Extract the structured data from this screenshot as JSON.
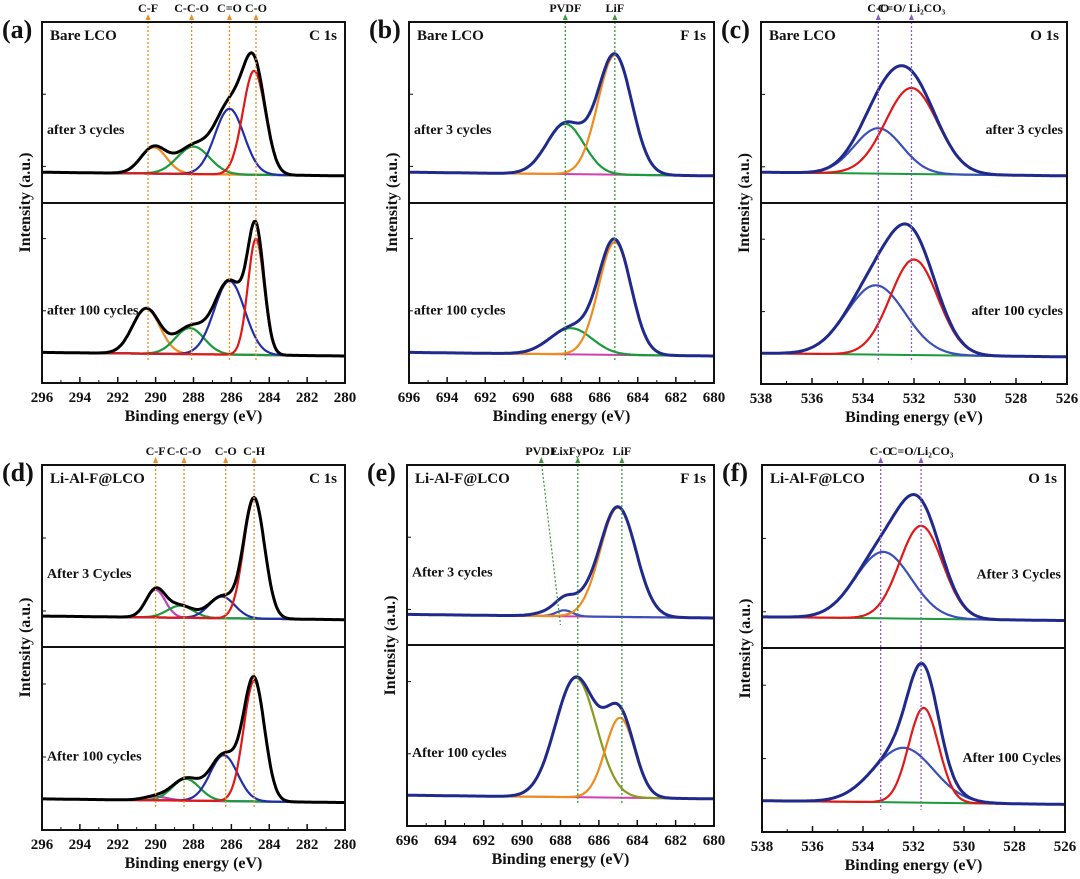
{
  "chart_data": [
    {
      "id": "a",
      "panel_label": "(a)",
      "type": "line",
      "sample": "Bare LCO",
      "region": "C 1s",
      "xlabel": "Binding energy (eV)",
      "ylabel": "Intensity (a.u.)",
      "xlim": [
        296,
        280
      ],
      "xticks": [
        296,
        294,
        292,
        290,
        288,
        286,
        284,
        282,
        280
      ],
      "ref_color": "#f08c1e",
      "ref_lines": [
        {
          "label": "C-F",
          "x": 290.4
        },
        {
          "label": "C-C-O",
          "x": 288.1
        },
        {
          "label": "C=O",
          "x": 286.1
        },
        {
          "label": "C-O",
          "x": 284.7
        }
      ],
      "subplots": [
        {
          "label": "after 3 cycles",
          "label_pos": "left",
          "components": [
            {
              "name": "C-F",
              "color": "#f08c1e",
              "center": 290.1,
              "height": 0.22,
              "fwhm": 1.6
            },
            {
              "name": "C-C-O",
              "color": "#1a9a3a",
              "center": 288.0,
              "height": 0.23,
              "fwhm": 2.0
            },
            {
              "name": "C=O",
              "color": "#2230a8",
              "center": 286.1,
              "height": 0.55,
              "fwhm": 1.8
            },
            {
              "name": "C-O",
              "color": "#e01818",
              "center": 284.8,
              "height": 0.87,
              "fwhm": 1.4
            }
          ],
          "envelope_color": "#000000",
          "baseline_color": "#2230a8"
        },
        {
          "label": "after 100 cycles",
          "label_pos": "left",
          "components": [
            {
              "name": "C-F",
              "color": "#f08c1e",
              "center": 290.5,
              "height": 0.38,
              "fwhm": 1.7
            },
            {
              "name": "C-C-O",
              "color": "#1a9a3a",
              "center": 288.2,
              "height": 0.22,
              "fwhm": 1.8
            },
            {
              "name": "C=O",
              "color": "#2230a8",
              "center": 286.1,
              "height": 0.62,
              "fwhm": 1.9
            },
            {
              "name": "C-O",
              "color": "#e01818",
              "center": 284.7,
              "height": 0.98,
              "fwhm": 1.0
            }
          ],
          "envelope_color": "#000000",
          "baseline_color": "#2230a8"
        }
      ]
    },
    {
      "id": "b",
      "panel_label": "(b)",
      "type": "line",
      "sample": "Bare LCO",
      "region": "F 1s",
      "xlabel": "Binding energy (eV)",
      "ylabel": "Intensity (a.u.)",
      "xlim": [
        696,
        680
      ],
      "xticks": [
        696,
        694,
        692,
        690,
        688,
        686,
        684,
        682,
        680
      ],
      "ref_color": "#3a9a3a",
      "ref_lines": [
        {
          "label": "PVDF",
          "x": 687.8
        },
        {
          "label": "LiF",
          "x": 685.2
        }
      ],
      "subplots": [
        {
          "label": "after 3 cycles",
          "label_pos": "left",
          "components": [
            {
              "name": "PVDF",
              "color": "#1a9a3a",
              "center": 687.8,
              "height": 0.42,
              "fwhm": 2.3
            },
            {
              "name": "LiF",
              "color": "#f08c1e",
              "center": 685.2,
              "height": 1.0,
              "fwhm": 2.1
            }
          ],
          "envelope_color": "#1f2a8c",
          "baseline_color": "#d040b0"
        },
        {
          "label": "after 100 cycles",
          "label_pos": "left",
          "components": [
            {
              "name": "PVDF",
              "color": "#1a9a3a",
              "center": 687.5,
              "height": 0.22,
              "fwhm": 2.6
            },
            {
              "name": "LiF",
              "color": "#f08c1e",
              "center": 685.2,
              "height": 0.95,
              "fwhm": 2.0
            }
          ],
          "envelope_color": "#1f2a8c",
          "baseline_color": "#d040b0"
        }
      ]
    },
    {
      "id": "c",
      "panel_label": "(c)",
      "type": "line",
      "sample": "Bare LCO",
      "region": "O 1s",
      "xlabel": "Binding energy (eV)",
      "ylabel": "Intensity (a.u.)",
      "xlim": [
        538,
        526
      ],
      "xticks": [
        538,
        536,
        534,
        532,
        530,
        528,
        526
      ],
      "ref_color": "#8a5ad0",
      "ref_lines": [
        {
          "label": "C-O",
          "x": 533.4
        },
        {
          "label": "C=O/ Li₂CO₃",
          "x": 532.1
        }
      ],
      "subplots": [
        {
          "label": "after 3 cycles",
          "label_pos": "right",
          "components": [
            {
              "name": "C-O",
              "color": "#3a50b8",
              "center": 533.4,
              "height": 0.38,
              "fwhm": 2.2
            },
            {
              "name": "C=O/Li2CO3",
              "color": "#e01818",
              "center": 532.1,
              "height": 0.72,
              "fwhm": 2.4
            }
          ],
          "envelope_color": "#1f2a8c",
          "baseline_color": "#1a9a3a"
        },
        {
          "label": "after 100 cycles",
          "label_pos": "right",
          "components": [
            {
              "name": "C-O",
              "color": "#3a50b8",
              "center": 533.5,
              "height": 0.58,
              "fwhm": 2.7
            },
            {
              "name": "C=O/Li2CO3",
              "color": "#e01818",
              "center": 532.0,
              "height": 0.8,
              "fwhm": 2.2
            }
          ],
          "envelope_color": "#1f2a8c",
          "baseline_color": "#1a9a3a"
        }
      ]
    },
    {
      "id": "d",
      "panel_label": "(d)",
      "type": "line",
      "sample": "Li-Al-F@LCO",
      "region": "C 1s",
      "xlabel": "Binding energy (eV)",
      "ylabel": "Intensity (a.u.)",
      "xlim": [
        296,
        280
      ],
      "xticks": [
        296,
        294,
        292,
        290,
        288,
        286,
        284,
        282,
        280
      ],
      "ref_color": "#f08c1e",
      "ref_lines": [
        {
          "label": "C-F",
          "x": 290.0
        },
        {
          "label": "C-C-O",
          "x": 288.5
        },
        {
          "label": "C-O",
          "x": 286.3
        },
        {
          "label": "C-H",
          "x": 284.8
        }
      ],
      "subplots": [
        {
          "label": "After 3 Cycles",
          "label_pos": "left",
          "components": [
            {
              "name": "C-F",
              "color": "#c040c0",
              "center": 290.0,
              "height": 0.23,
              "fwhm": 1.2
            },
            {
              "name": "C-C-O",
              "color": "#1a9a3a",
              "center": 288.7,
              "height": 0.1,
              "fwhm": 1.6
            },
            {
              "name": "C-O",
              "color": "#2230a8",
              "center": 286.5,
              "height": 0.18,
              "fwhm": 1.6
            },
            {
              "name": "C-H",
              "color": "#e01818",
              "center": 284.8,
              "height": 1.0,
              "fwhm": 1.3
            }
          ],
          "envelope_color": "#000000",
          "baseline_color": "#2230a8"
        },
        {
          "label": "After 100 cycles",
          "label_pos": "left",
          "components": [
            {
              "name": "C-F",
              "color": "#c040c0",
              "center": 290.0,
              "height": 0.03,
              "fwhm": 1.5
            },
            {
              "name": "C-C-O",
              "color": "#1a9a3a",
              "center": 288.4,
              "height": 0.18,
              "fwhm": 1.7
            },
            {
              "name": "C-O",
              "color": "#2230a8",
              "center": 286.4,
              "height": 0.38,
              "fwhm": 1.7
            },
            {
              "name": "C-H",
              "color": "#e01818",
              "center": 284.8,
              "height": 1.0,
              "fwhm": 1.3
            }
          ],
          "envelope_color": "#000000",
          "baseline_color": "#2230a8"
        }
      ]
    },
    {
      "id": "e",
      "panel_label": "(e)",
      "type": "line",
      "sample": "Li-Al-F@LCO",
      "region": "F 1s",
      "xlabel": "Binding energy (eV)",
      "ylabel": "Intensity (a.u.)",
      "xlim": [
        696,
        680
      ],
      "xticks": [
        696,
        694,
        692,
        690,
        688,
        686,
        684,
        682,
        680
      ],
      "ref_color": "#3a9a3a",
      "ref_lines": [
        {
          "label": "PVDF",
          "x": 689.0,
          "slanted_to": 688.0
        },
        {
          "label": "LixFyPOz",
          "x": 687.1
        },
        {
          "label": "LiF",
          "x": 684.8
        }
      ],
      "subplots": [
        {
          "label": "After 3 cycles",
          "label_pos": "left",
          "components": [
            {
              "name": "PVDF",
              "color": "#3a50b8",
              "center": 687.8,
              "height": 0.05,
              "fwhm": 1.0
            },
            {
              "name": "LiF",
              "color": "#f08c1e",
              "center": 685.0,
              "height": 0.92,
              "fwhm": 2.2
            },
            {
              "name": "shoulder",
              "color": "none",
              "center": 687.4,
              "height": 0.12,
              "fwhm": 2.4
            }
          ],
          "envelope_color": "#1f2a8c",
          "baseline_color": "#d040b0"
        },
        {
          "label": "After 100 cycles",
          "label_pos": "left",
          "components": [
            {
              "name": "LixFyPOz",
              "color": "#8a9a20",
              "center": 687.2,
              "height": 1.0,
              "fwhm": 2.5
            },
            {
              "name": "LiF",
              "color": "#f08c1e",
              "center": 684.9,
              "height": 0.67,
              "fwhm": 1.8
            }
          ],
          "envelope_color": "#1f2a8c",
          "baseline_color": "#d040b0"
        }
      ]
    },
    {
      "id": "f",
      "panel_label": "(f)",
      "type": "line",
      "sample": "Li-Al-F@LCO",
      "region": "O 1s",
      "xlabel": "Binding energy (eV)",
      "ylabel": "Intensity (a.u.)",
      "xlim": [
        538,
        526
      ],
      "xticks": [
        538,
        536,
        534,
        532,
        530,
        528,
        526
      ],
      "ref_color": "#8a5ad0",
      "ref_lines": [
        {
          "label": "C-O",
          "x": 533.3
        },
        {
          "label": "C=O/Li₂CO₃",
          "x": 531.7
        }
      ],
      "subplots": [
        {
          "label": "After 3 Cycles",
          "label_pos": "right",
          "components": [
            {
              "name": "C-O",
              "color": "#3a50b8",
              "center": 533.2,
              "height": 0.55,
              "fwhm": 2.6
            },
            {
              "name": "C=O/Li2CO3",
              "color": "#e01818",
              "center": 531.7,
              "height": 0.77,
              "fwhm": 2.0
            }
          ],
          "envelope_color": "#1f2a8c",
          "baseline_color": "#1a9a3a"
        },
        {
          "label": "After 100 Cycles",
          "label_pos": "right",
          "components": [
            {
              "name": "C-O",
              "color": "#3a50b8",
              "center": 532.4,
              "height": 0.45,
              "fwhm": 2.8
            },
            {
              "name": "C=O/Li2CO3",
              "color": "#e01818",
              "center": 531.6,
              "height": 0.78,
              "fwhm": 1.4
            }
          ],
          "envelope_color": "#1f2a8c",
          "baseline_color": "#1a9a3a"
        }
      ]
    }
  ]
}
